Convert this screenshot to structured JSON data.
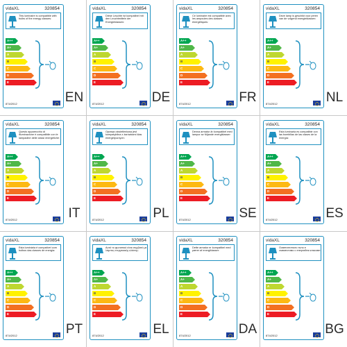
{
  "brand": "vidaXL",
  "code": "320854",
  "regulation": "874/2012",
  "classes": [
    {
      "letter": "A++",
      "color": "#00a651"
    },
    {
      "letter": "A+",
      "color": "#50b848"
    },
    {
      "letter": "A",
      "color": "#bed730"
    },
    {
      "letter": "B",
      "color": "#fff200"
    },
    {
      "letter": "C",
      "color": "#fdb913"
    },
    {
      "letter": "D",
      "color": "#f37021"
    },
    {
      "letter": "E",
      "color": "#ed1c24"
    }
  ],
  "labels": [
    {
      "lang": "EN",
      "text": "This luminaire is compatible with bulbs of the energy classes:"
    },
    {
      "lang": "DE",
      "text": "Diese Leuchte ist kompatibel mit den Leuchtmitteln der Energieklassen:"
    },
    {
      "lang": "FR",
      "text": "Ce luminaire est compatible avec les ampoules des classes énergétiques:"
    },
    {
      "lang": "NL",
      "text": "Deze lamp is geschikt voor peren van de volgend energieklassen:"
    },
    {
      "lang": "IT",
      "text": "Questo apparecchio di illuminazione è compatibile con le lampadine delle classi energetiche:"
    },
    {
      "lang": "PL",
      "text": "Oprawa oświetleniowa jest kompatybilna z żarówkami klas energetycznych:"
    },
    {
      "lang": "SE",
      "text": "Denna armatur är kompatibel med lampor av följande energiklasser:"
    },
    {
      "lang": "ES",
      "text": "Esta luminaria es compatible con las bombillas de las clases de la energía:"
    },
    {
      "lang": "PT",
      "text": "Esta luminária é compatível com bolbos das classes de energia:"
    },
    {
      "lang": "EL",
      "text": "Αυτό το φωτιστικό είναι συμβατό με λάμπες ενεργειακής κλάσης:"
    },
    {
      "lang": "DA",
      "text": "Dette armatur er kompatibel med pærer af energiklasser:"
    },
    {
      "lang": "BG",
      "text": "Осветителното тяло е съвместимо с енергийни класове:"
    }
  ]
}
